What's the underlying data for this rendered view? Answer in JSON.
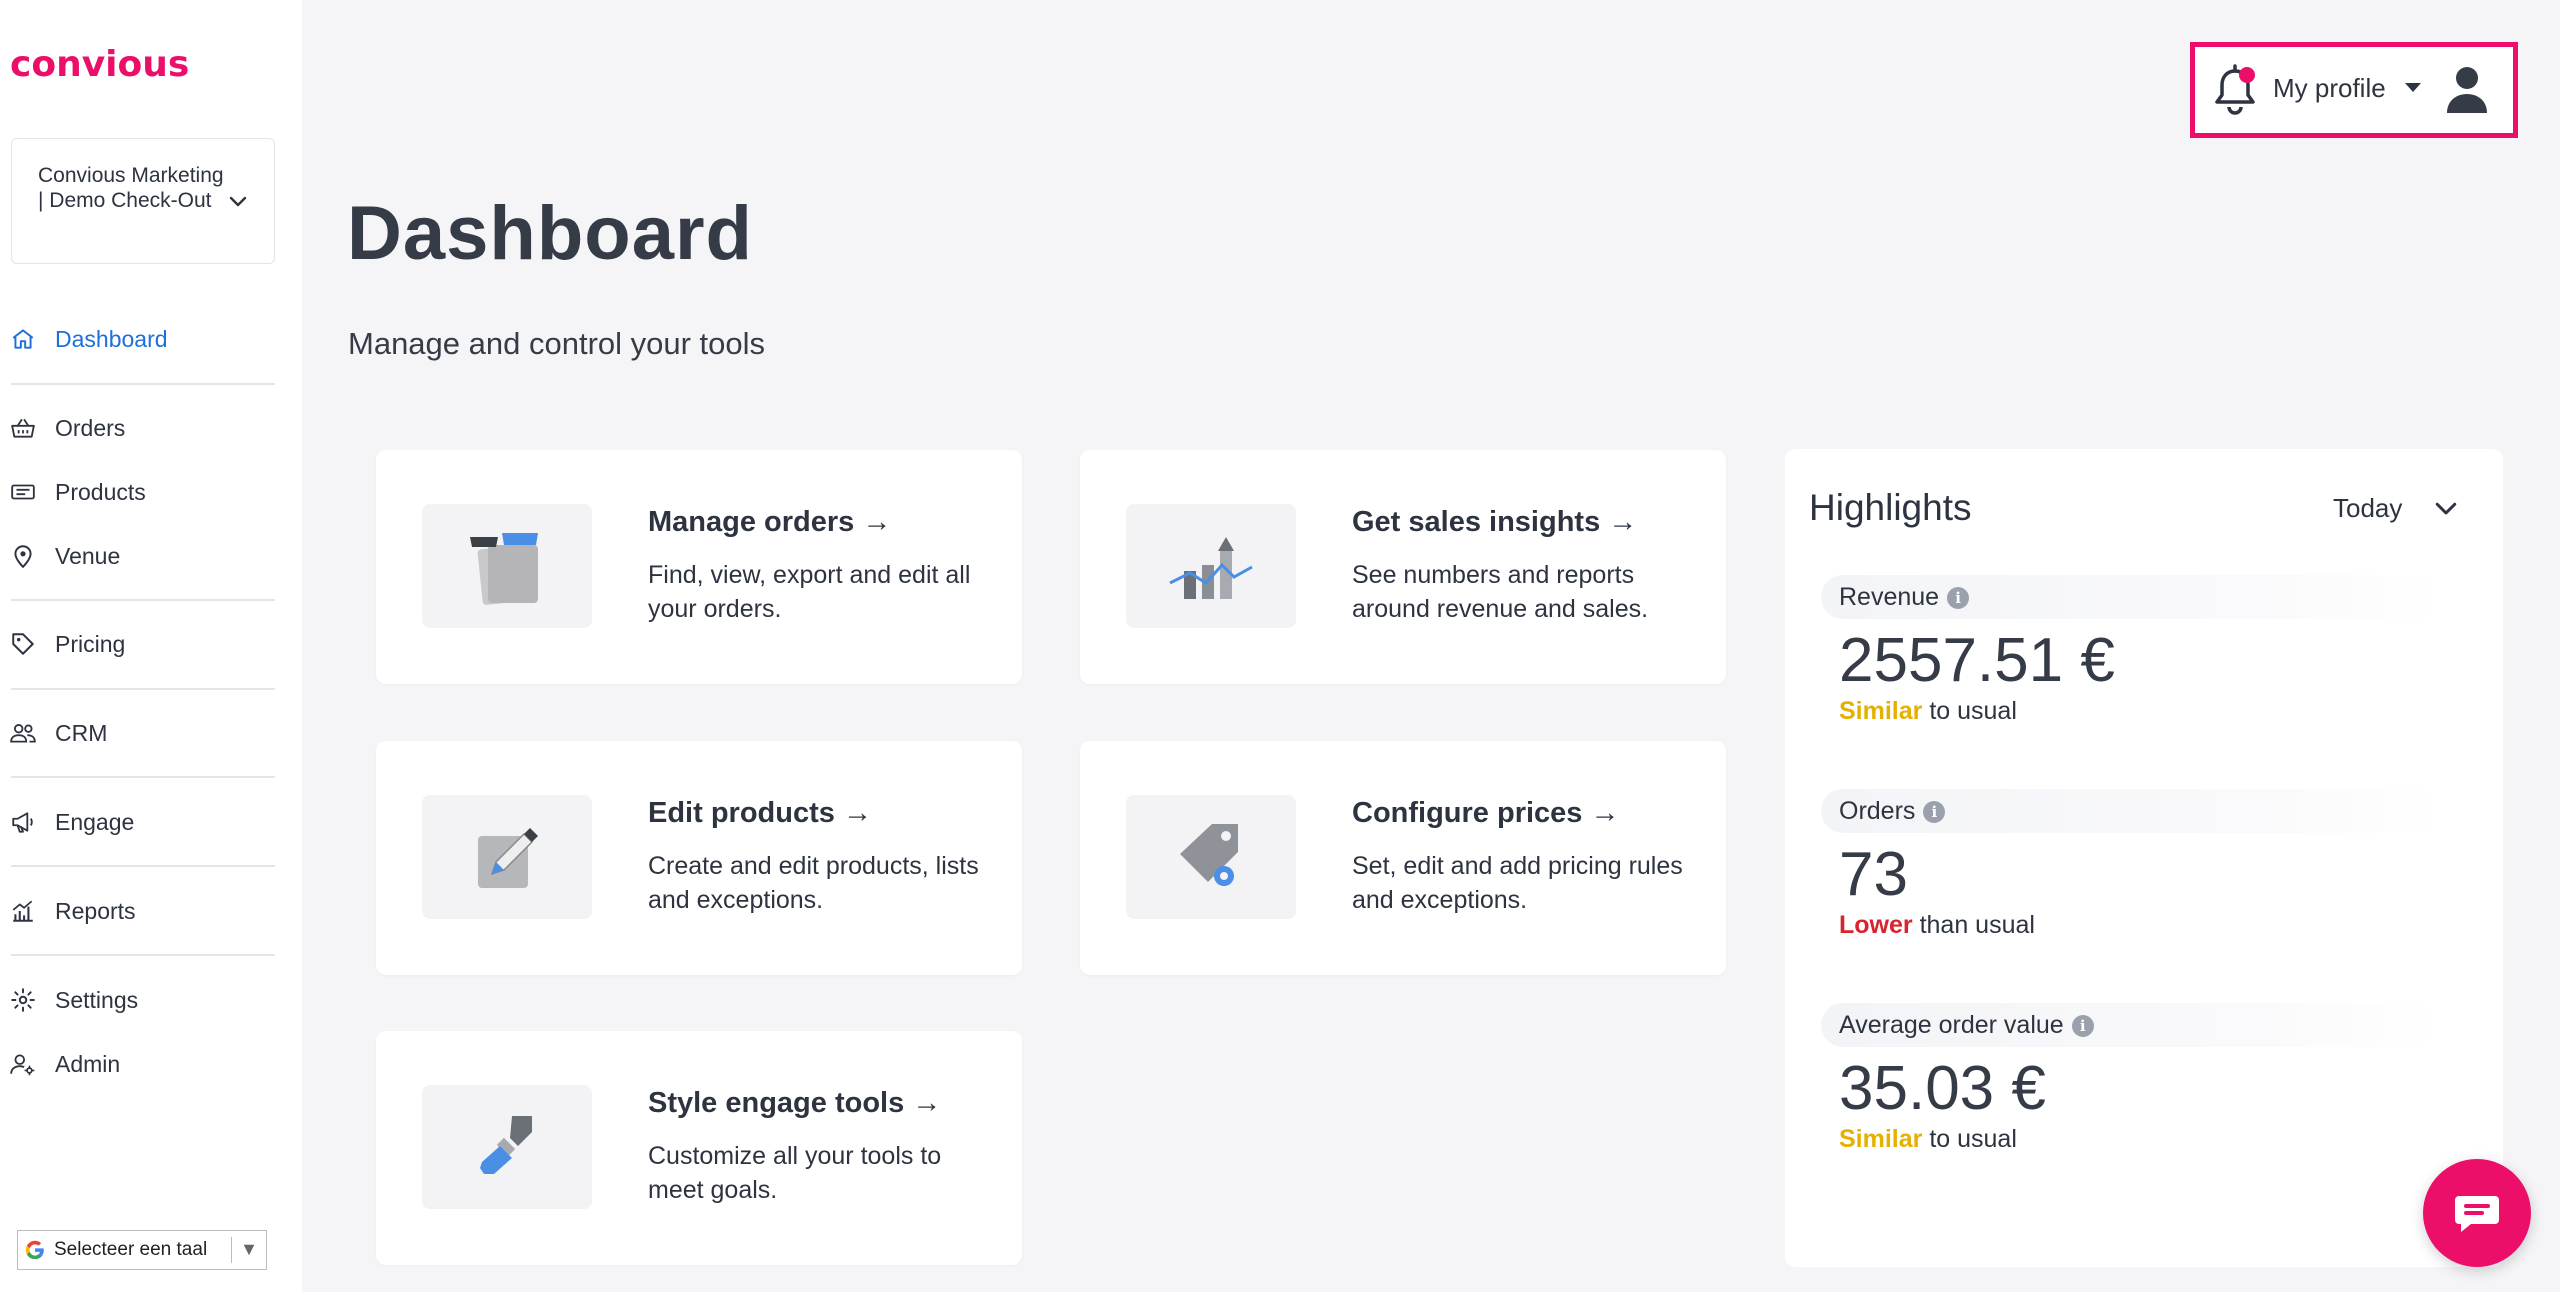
{
  "brand": {
    "logo_text": "convious",
    "accent": "#eb0f69",
    "link_blue": "#1e6fd9"
  },
  "account": {
    "name": "Convious Marketing | Demo Check-Out"
  },
  "sidebar": {
    "items": [
      {
        "label": "Dashboard",
        "icon": "home-icon",
        "active": true
      },
      {
        "label": "Orders",
        "icon": "basket-icon"
      },
      {
        "label": "Products",
        "icon": "ticket-icon"
      },
      {
        "label": "Venue",
        "icon": "location-pin-icon"
      },
      {
        "label": "Pricing",
        "icon": "price-tag-icon"
      },
      {
        "label": "CRM",
        "icon": "users-icon"
      },
      {
        "label": "Engage",
        "icon": "megaphone-icon"
      },
      {
        "label": "Reports",
        "icon": "chart-icon"
      },
      {
        "label": "Settings",
        "icon": "gear-icon"
      },
      {
        "label": "Admin",
        "icon": "admin-user-icon"
      }
    ]
  },
  "language": {
    "label": "Selecteer een taal"
  },
  "header": {
    "profile_label": "My profile",
    "has_notification": true
  },
  "page": {
    "title": "Dashboard",
    "subtitle": "Manage and control your tools"
  },
  "cards": [
    {
      "title": "Manage orders →",
      "description": "Find, view, export and edit all your orders.",
      "icon": "tickets-icon"
    },
    {
      "title": "Get sales insights →",
      "description": "See numbers and reports around revenue and sales.",
      "icon": "bar-chart-icon"
    },
    {
      "title": "Edit products →",
      "description": "Create and edit products, lists and exceptions.",
      "icon": "edit-pencil-icon"
    },
    {
      "title": "Configure prices →",
      "description": "Set, edit and add pricing rules and exceptions.",
      "icon": "price-tag-gear-icon"
    },
    {
      "title": "Style engage tools →",
      "description": "Customize all your tools to meet goals.",
      "icon": "paint-roller-icon"
    }
  ],
  "highlights": {
    "title": "Highlights",
    "period": "Today",
    "metrics": [
      {
        "label": "Revenue",
        "value": "2557.51 €",
        "comparison_tag": "Similar",
        "comparison_rest": " to usual",
        "tag_color": "#e6b000"
      },
      {
        "label": "Orders",
        "value": "73",
        "comparison_tag": "Lower",
        "comparison_rest": " than usual",
        "tag_color": "#d9232e"
      },
      {
        "label": "Average order value",
        "value": "35.03 €",
        "comparison_tag": "Similar",
        "comparison_rest": " to usual",
        "tag_color": "#e6b000"
      }
    ]
  }
}
